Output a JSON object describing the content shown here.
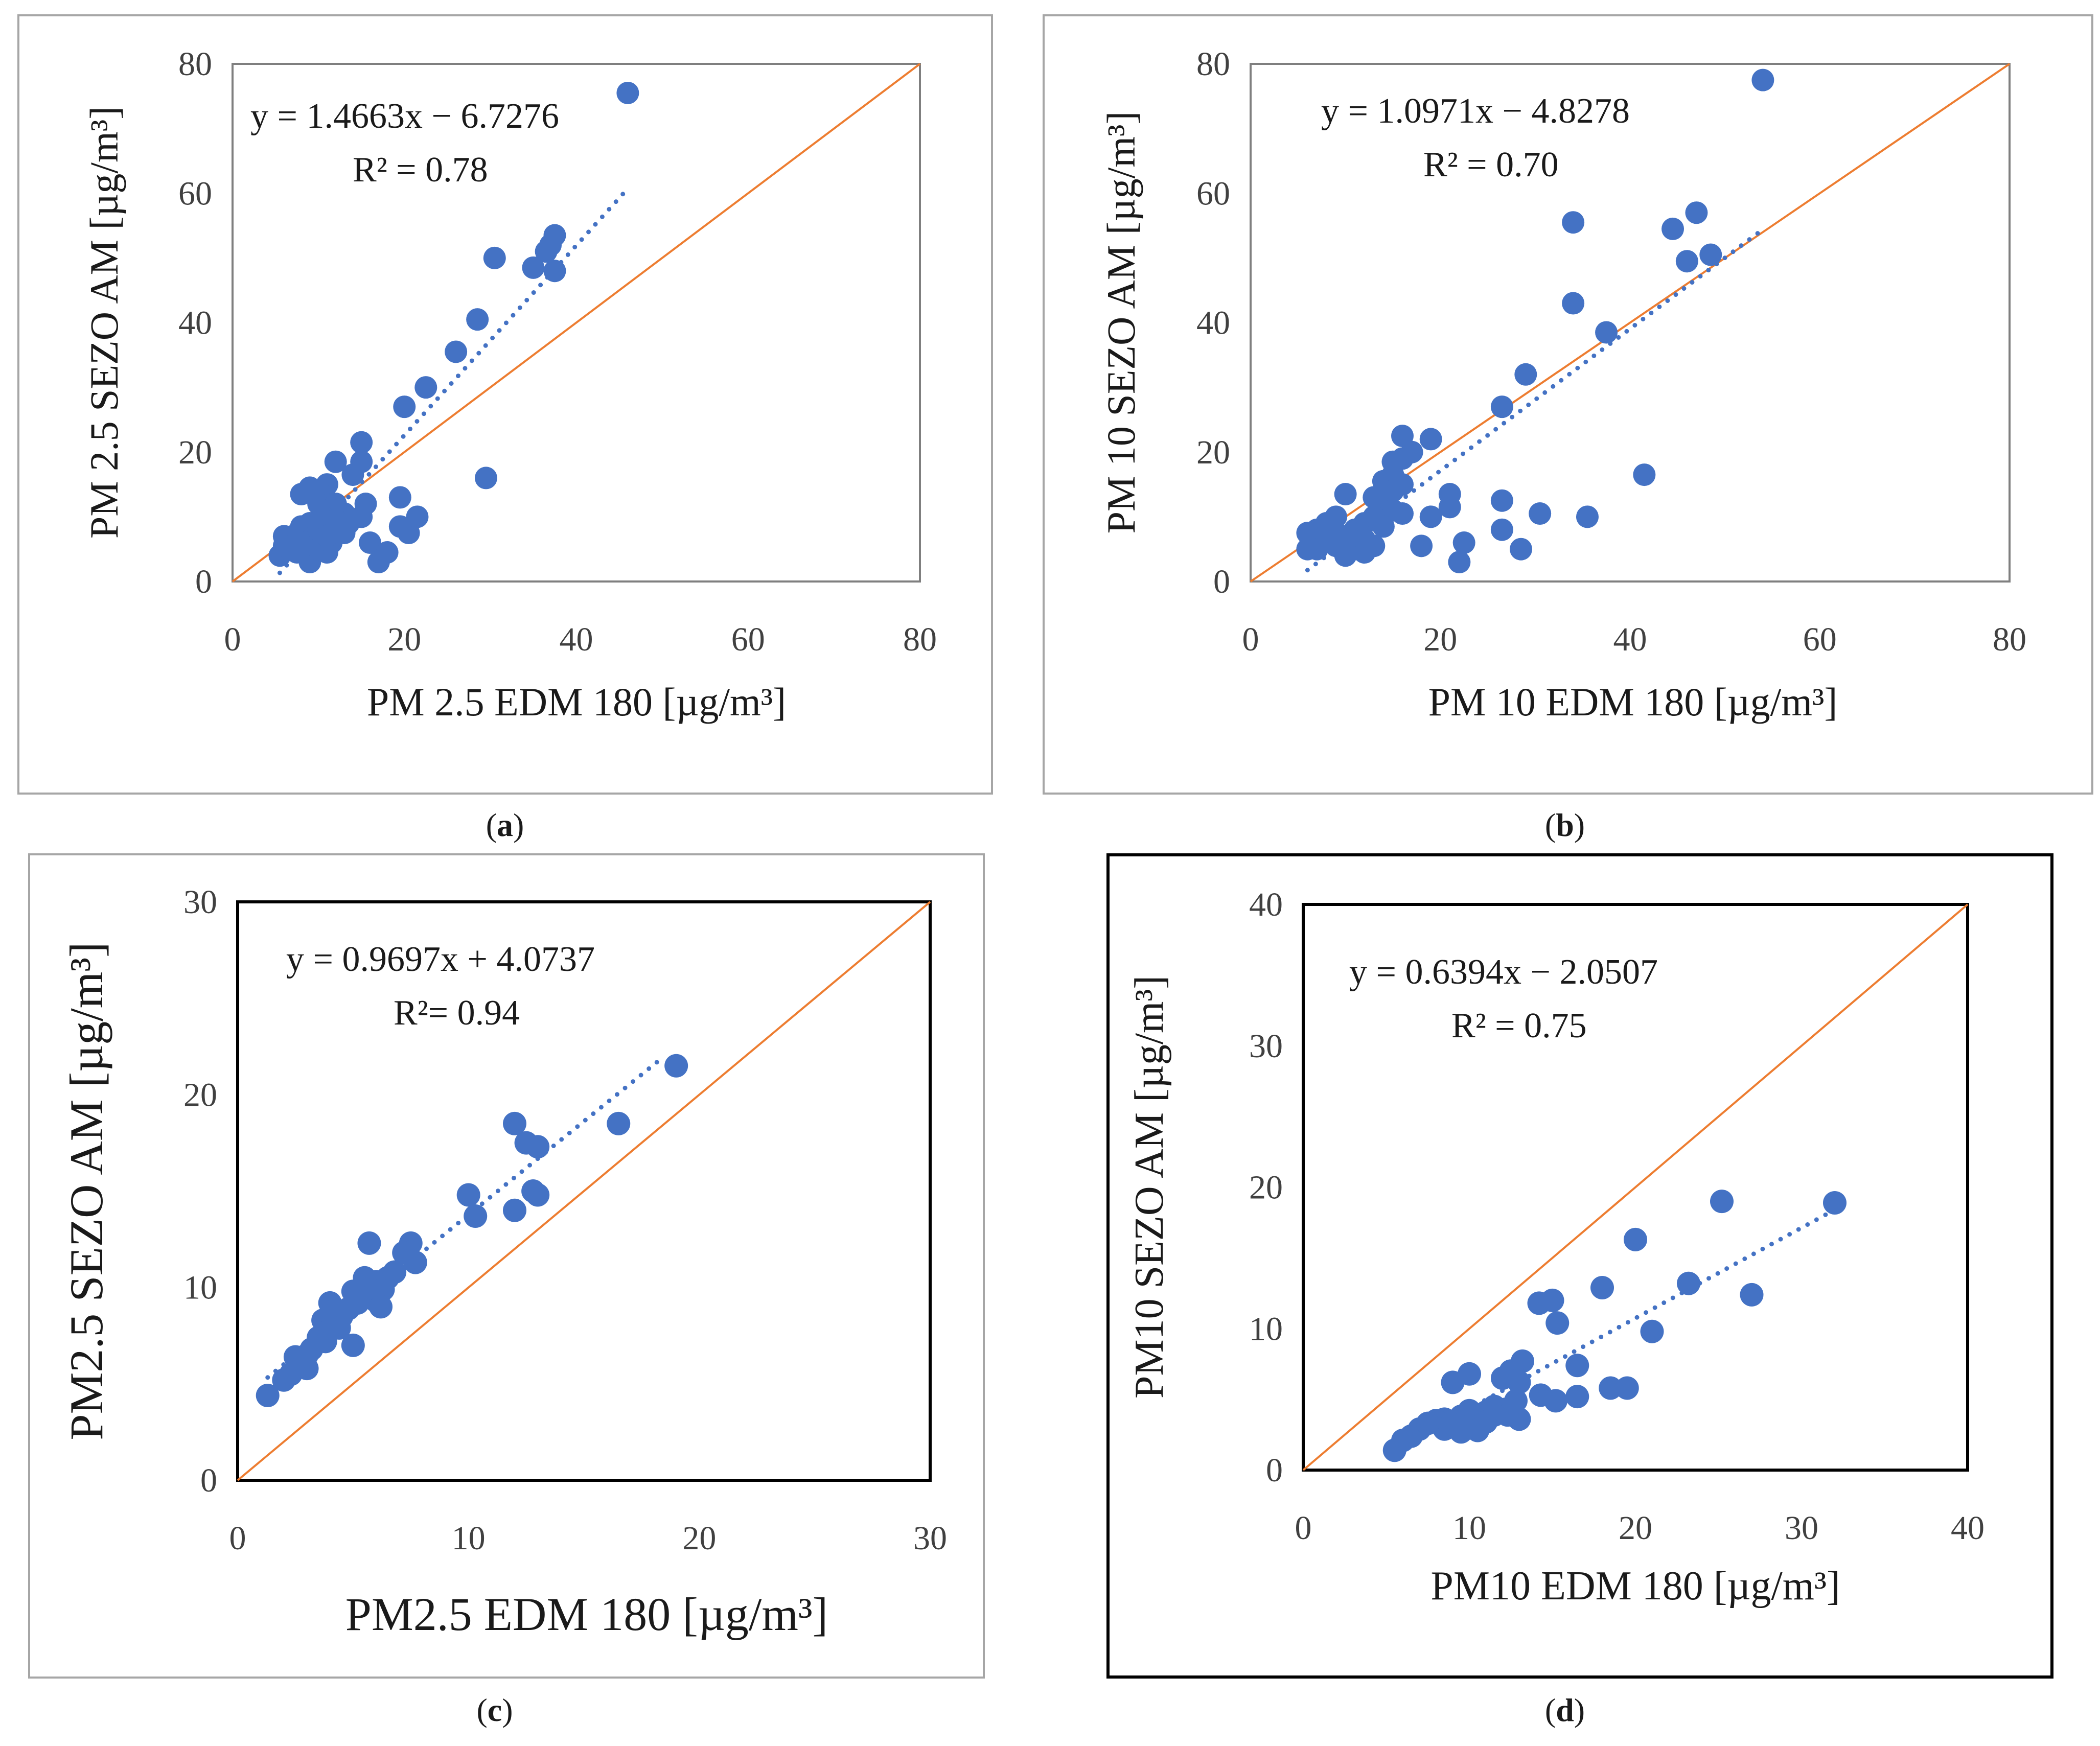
{
  "colors": {
    "points": "#4472C4",
    "trend": "#4472C4",
    "identity": "#ED7D31",
    "axis": "#595959",
    "frame": "#a6a6a6"
  },
  "captions": [
    "a",
    "b",
    "c",
    "d"
  ],
  "chart_data": [
    {
      "id": "a",
      "type": "scatter",
      "xlabel": "PM 2.5 EDM 180 [µg/m³]",
      "ylabel": "PM 2.5 SEZO AM [µg/m³]",
      "equation": "y = 1.4663x − 6.7276",
      "r2": "R² = 0.78",
      "xlim": [
        0,
        80
      ],
      "ylim": [
        0,
        80
      ],
      "xticks": [
        "0",
        "20",
        "40",
        "60",
        "80"
      ],
      "yticks": [
        "0",
        "20",
        "40",
        "60",
        "80"
      ],
      "trend": {
        "slope": 1.4663,
        "intercept": -6.7276,
        "x_start": 5.5,
        "x_end": 45.5
      },
      "identity_line": true,
      "points": [
        [
          46,
          75.5
        ],
        [
          30.5,
          50
        ],
        [
          28.5,
          40.5
        ],
        [
          26,
          35.5
        ],
        [
          22.5,
          30
        ],
        [
          20,
          27
        ],
        [
          35,
          48.5
        ],
        [
          36.5,
          51
        ],
        [
          37,
          52
        ],
        [
          37.5,
          53.5
        ],
        [
          37.5,
          48
        ],
        [
          29.5,
          16
        ],
        [
          15,
          21.5
        ],
        [
          12,
          18.5
        ],
        [
          15,
          18.5
        ],
        [
          14,
          16.5
        ],
        [
          15.5,
          12
        ],
        [
          15,
          10
        ],
        [
          13,
          10.5
        ],
        [
          19.5,
          13
        ],
        [
          19.5,
          8.5
        ],
        [
          20.5,
          7.5
        ],
        [
          21.5,
          10
        ],
        [
          16,
          6
        ],
        [
          17,
          3
        ],
        [
          18,
          4.5
        ],
        [
          11,
          15
        ],
        [
          10,
          14
        ],
        [
          8,
          13.5
        ],
        [
          9,
          14.5
        ],
        [
          10,
          12
        ],
        [
          11,
          11
        ],
        [
          12,
          12
        ],
        [
          10.5,
          10
        ],
        [
          9,
          9
        ],
        [
          8,
          8.5
        ],
        [
          7,
          7
        ],
        [
          6,
          7
        ],
        [
          5.5,
          4
        ],
        [
          6.5,
          5
        ],
        [
          8,
          5.5
        ],
        [
          9,
          3
        ],
        [
          10,
          5
        ],
        [
          11,
          4.5
        ],
        [
          11.5,
          6
        ],
        [
          12.5,
          8
        ],
        [
          13.5,
          9
        ],
        [
          9.5,
          7
        ],
        [
          8.5,
          6
        ],
        [
          7.5,
          4.5
        ],
        [
          6,
          5.5
        ],
        [
          10,
          8
        ],
        [
          12,
          9.5
        ],
        [
          11,
          7
        ],
        [
          13,
          7.5
        ]
      ]
    },
    {
      "id": "b",
      "type": "scatter",
      "xlabel": "PM 10 EDM 180 [µg/m³]",
      "ylabel": "PM 10 SEZO AM [µg/m³]",
      "equation": "y = 1.0971x − 4.8278",
      "r2": "R² = 0.70",
      "xlim": [
        0,
        80
      ],
      "ylim": [
        0,
        80
      ],
      "xticks": [
        "0",
        "20",
        "40",
        "60",
        "80"
      ],
      "yticks": [
        "0",
        "20",
        "40",
        "60",
        "80"
      ],
      "trend": {
        "slope": 1.0971,
        "intercept": -4.8278,
        "x_start": 6,
        "x_end": 53.5
      },
      "identity_line": true,
      "points": [
        [
          54,
          77.5
        ],
        [
          47,
          57
        ],
        [
          44.5,
          54.5
        ],
        [
          34,
          55.5
        ],
        [
          46,
          49.5
        ],
        [
          48.5,
          50.5
        ],
        [
          34,
          43
        ],
        [
          37.5,
          38.5
        ],
        [
          29,
          32
        ],
        [
          26.5,
          27
        ],
        [
          16,
          22.5
        ],
        [
          19,
          22
        ],
        [
          26.5,
          12.5
        ],
        [
          21,
          13.5
        ],
        [
          21,
          11.5
        ],
        [
          22.5,
          6
        ],
        [
          22,
          3
        ],
        [
          26.5,
          8
        ],
        [
          28.5,
          5
        ],
        [
          30.5,
          10.5
        ],
        [
          35.5,
          10
        ],
        [
          41.5,
          16.5
        ],
        [
          18,
          5.5
        ],
        [
          19,
          10
        ],
        [
          15,
          18.5
        ],
        [
          16,
          19
        ],
        [
          17,
          20
        ],
        [
          14,
          15.5
        ],
        [
          15,
          16.5
        ],
        [
          16,
          15
        ],
        [
          13,
          13
        ],
        [
          14,
          12.5
        ],
        [
          15,
          11
        ],
        [
          16,
          10.5
        ],
        [
          10,
          13.5
        ],
        [
          9,
          10
        ],
        [
          8,
          9
        ],
        [
          7,
          8
        ],
        [
          6,
          7.5
        ],
        [
          6,
          5
        ],
        [
          7,
          5
        ],
        [
          8,
          6.5
        ],
        [
          9,
          5.5
        ],
        [
          10,
          4
        ],
        [
          11,
          5
        ],
        [
          12,
          4.5
        ],
        [
          13,
          5.5
        ],
        [
          11,
          8
        ],
        [
          12,
          9
        ],
        [
          13,
          10
        ],
        [
          12,
          6.5
        ],
        [
          14,
          8.5
        ],
        [
          10,
          7
        ],
        [
          9,
          7.5
        ],
        [
          15,
          14
        ]
      ]
    },
    {
      "id": "c",
      "type": "scatter",
      "xlabel": "PM2.5 EDM 180 [µg/m³]",
      "ylabel": "PM2.5 SEZO AM [µg/m³]",
      "equation": "y = 0.9697x + 4.0737",
      "r2": "R²= 0.94",
      "xlim": [
        0,
        30
      ],
      "ylim": [
        0,
        30
      ],
      "xticks": [
        "0",
        "10",
        "20",
        "30"
      ],
      "yticks": [
        "0",
        "10",
        "20",
        "30"
      ],
      "trend": {
        "slope": 0.9697,
        "intercept": 4.0737,
        "x_start": 1.3,
        "x_end": 18.5
      },
      "identity_line": true,
      "points": [
        [
          19,
          21.5
        ],
        [
          16.5,
          18.5
        ],
        [
          12,
          18.5
        ],
        [
          12.5,
          17.5
        ],
        [
          13,
          17.3
        ],
        [
          10,
          14.8
        ],
        [
          10.3,
          13.7
        ],
        [
          12,
          14
        ],
        [
          13,
          14.8
        ],
        [
          12.8,
          15
        ],
        [
          7.5,
          12.3
        ],
        [
          7.2,
          11.8
        ],
        [
          7.7,
          11.3
        ],
        [
          5.7,
          12.3
        ],
        [
          6.5,
          10.5
        ],
        [
          6,
          10.3
        ],
        [
          5.5,
          10.5
        ],
        [
          6.3,
          9.9
        ],
        [
          5,
          9.8
        ],
        [
          5.3,
          9.5
        ],
        [
          6,
          9.3
        ],
        [
          6.2,
          9
        ],
        [
          5,
          7
        ],
        [
          4,
          9.2
        ],
        [
          3.7,
          8.3
        ],
        [
          4.2,
          8.8
        ],
        [
          4.5,
          8.5
        ],
        [
          4,
          7.8
        ],
        [
          3.5,
          7.4
        ],
        [
          3.8,
          7.2
        ],
        [
          3.2,
          6.8
        ],
        [
          3,
          6.5
        ],
        [
          2.7,
          6.3
        ],
        [
          2.5,
          6.4
        ],
        [
          3,
          5.8
        ],
        [
          2.3,
          5.5
        ],
        [
          2,
          5.2
        ],
        [
          1.3,
          4.4
        ],
        [
          4.8,
          8.9
        ],
        [
          5.2,
          9.2
        ],
        [
          6.8,
          10.8
        ],
        [
          4.4,
          7.9
        ]
      ]
    },
    {
      "id": "d",
      "type": "scatter",
      "xlabel": "PM10 EDM 180 [µg/m³]",
      "ylabel": "PM10 SEZO AM [µg/m³]",
      "equation": "y = 0.6394x − 2.0507",
      "r2": "R² = 0.75",
      "xlim": [
        0,
        40
      ],
      "ylim": [
        0,
        40
      ],
      "xticks": [
        "0",
        "10",
        "20",
        "30",
        "40"
      ],
      "yticks": [
        "0",
        "10",
        "20",
        "30",
        "40"
      ],
      "trend": {
        "slope": 0.6394,
        "intercept": -2.0507,
        "x_start": 5.5,
        "x_end": 32
      },
      "identity_line": true,
      "points": [
        [
          32,
          18.9
        ],
        [
          25.2,
          19
        ],
        [
          20,
          16.3
        ],
        [
          23.2,
          13.2
        ],
        [
          27,
          12.4
        ],
        [
          18,
          12.9
        ],
        [
          14.2,
          11.8
        ],
        [
          15,
          12
        ],
        [
          15.3,
          10.4
        ],
        [
          21,
          9.8
        ],
        [
          13.2,
          7.7
        ],
        [
          16.5,
          7.4
        ],
        [
          12.5,
          7
        ],
        [
          10,
          6.8
        ],
        [
          9,
          6.2
        ],
        [
          12,
          6.5
        ],
        [
          13,
          6.2
        ],
        [
          18.5,
          5.8
        ],
        [
          19.5,
          5.8
        ],
        [
          16.5,
          5.2
        ],
        [
          15.2,
          4.9
        ],
        [
          14.3,
          5.3
        ],
        [
          11.5,
          4.5
        ],
        [
          12.2,
          4.3
        ],
        [
          10,
          4.2
        ],
        [
          11,
          4.1
        ],
        [
          9.5,
          3.8
        ],
        [
          8.5,
          3.6
        ],
        [
          8,
          3.5
        ],
        [
          9,
          3.2
        ],
        [
          10,
          3.1
        ],
        [
          12.3,
          3.9
        ],
        [
          13,
          3.6
        ],
        [
          11,
          3.4
        ],
        [
          8.5,
          2.9
        ],
        [
          7,
          2.9
        ],
        [
          6.5,
          2.4
        ],
        [
          6,
          2.1
        ],
        [
          5.5,
          1.4
        ],
        [
          7.5,
          3.3
        ],
        [
          10.5,
          2.8
        ],
        [
          9.5,
          2.7
        ],
        [
          11.5,
          3.9
        ],
        [
          12.8,
          4.9
        ]
      ]
    }
  ]
}
